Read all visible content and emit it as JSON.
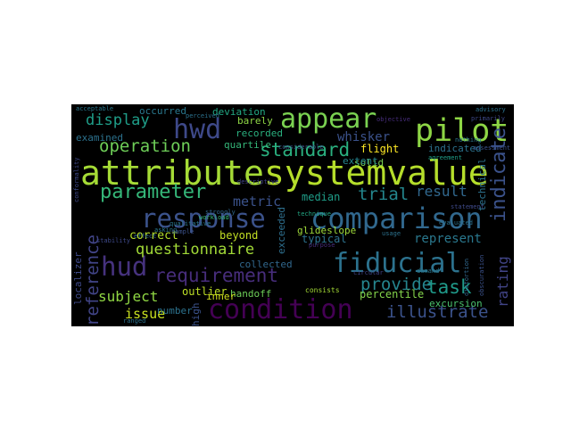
{
  "wordcloud": {
    "background": "#000000",
    "words": [
      {
        "text": "attribute",
        "color": "#a5db36"
      },
      {
        "text": "systemvalue",
        "color": "#b5de2b"
      },
      {
        "text": "appear",
        "color": "#7ad151"
      },
      {
        "text": "pilot",
        "color": "#8ed645"
      },
      {
        "text": "hwd",
        "color": "#3e4989"
      },
      {
        "text": "comparison",
        "color": "#31688e"
      },
      {
        "text": "response",
        "color": "#3b528b"
      },
      {
        "text": "fiducial",
        "color": "#2c728e"
      },
      {
        "text": "condition",
        "color": "#440154"
      },
      {
        "text": "hud",
        "color": "#46327e"
      },
      {
        "text": "requirement",
        "color": "#472d7b"
      },
      {
        "text": "parameter",
        "color": "#35b779"
      },
      {
        "text": "standard",
        "color": "#2ab07f"
      },
      {
        "text": "operation",
        "color": "#6ece58"
      },
      {
        "text": "display",
        "color": "#1f9e89"
      },
      {
        "text": "indicate",
        "color": "#3b528b"
      },
      {
        "text": "reference",
        "color": "#414487"
      },
      {
        "text": "task",
        "color": "#1f9a8a"
      },
      {
        "text": "questionnaire",
        "color": "#a2da37"
      },
      {
        "text": "illustrate",
        "color": "#3b528b"
      },
      {
        "text": "rating",
        "color": "#414487"
      },
      {
        "text": "trial",
        "color": "#24878e"
      },
      {
        "text": "metric",
        "color": "#3b528b"
      },
      {
        "text": "result",
        "color": "#31688e"
      },
      {
        "text": "provide",
        "color": "#25858e"
      },
      {
        "text": "subject",
        "color": "#90d743"
      },
      {
        "text": "issue",
        "color": "#c8e020"
      },
      {
        "text": "represent",
        "color": "#2a788e"
      },
      {
        "text": "correct",
        "color": "#b5de2b"
      },
      {
        "text": "beyond",
        "color": "#c2df23"
      },
      {
        "text": "exceeded",
        "color": "#2e6f8e"
      },
      {
        "text": "occurred",
        "color": "#2a788e"
      },
      {
        "text": "deviation",
        "color": "#22a884"
      },
      {
        "text": "examined",
        "color": "#2c728e"
      },
      {
        "text": "quartile",
        "color": "#35b779"
      },
      {
        "text": "barely",
        "color": "#8ed645"
      },
      {
        "text": "recorded",
        "color": "#2ab07f"
      },
      {
        "text": "whisker",
        "color": "#3b528b"
      },
      {
        "text": "median",
        "color": "#1f9e89"
      },
      {
        "text": "glideslope",
        "color": "#9fda3a"
      },
      {
        "text": "solid",
        "color": "#7ad151"
      },
      {
        "text": "flight",
        "color": "#fde725"
      },
      {
        "text": "extent",
        "color": "#25858e"
      },
      {
        "text": "indicated",
        "color": "#2c728e"
      },
      {
        "text": "technical",
        "color": "#3b528b"
      },
      {
        "text": "outlier",
        "color": "#bddf26"
      },
      {
        "text": "collected",
        "color": "#31688e"
      },
      {
        "text": "typical",
        "color": "#2c728e"
      },
      {
        "text": "localizer",
        "color": "#3e4989"
      },
      {
        "text": "handoff",
        "color": "#6ece58"
      },
      {
        "text": "percentile",
        "color": "#84d44b"
      },
      {
        "text": "excursion",
        "color": "#4ac16d"
      },
      {
        "text": "inner",
        "color": "#d2e21b"
      },
      {
        "text": "number",
        "color": "#2c728e"
      },
      {
        "text": "high",
        "color": "#3b528b"
      },
      {
        "text": "consists",
        "color": "#a5db36"
      },
      {
        "text": "demand",
        "color": "#2a788e"
      },
      {
        "text": "technique",
        "color": "#22a884"
      },
      {
        "text": "purpose",
        "color": "#472d7b"
      },
      {
        "text": "primarily",
        "color": "#3e4989"
      },
      {
        "text": "advisory",
        "color": "#2c728e"
      },
      {
        "text": "assessment",
        "color": "#3b528b"
      },
      {
        "text": "agreement",
        "color": "#1f9e89"
      },
      {
        "text": "workload",
        "color": "#35b779"
      },
      {
        "text": "qualitative",
        "color": "#2a788e"
      },
      {
        "text": "conformality",
        "color": "#3e4989"
      },
      {
        "text": "perceived",
        "color": "#2c728e"
      },
      {
        "text": "descriptive",
        "color": "#414487"
      },
      {
        "text": "strongly",
        "color": "#31688e"
      },
      {
        "text": "considerable",
        "color": "#3b528b"
      },
      {
        "text": "asking",
        "color": "#2a788e"
      },
      {
        "text": "evaluated",
        "color": "#2c728e"
      },
      {
        "text": "circular",
        "color": "#414487"
      },
      {
        "text": "obscuration",
        "color": "#3b528b"
      },
      {
        "text": "distortion",
        "color": "#31688e"
      },
      {
        "text": "nothing",
        "color": "#2a788e"
      },
      {
        "text": "statement",
        "color": "#3e4989"
      },
      {
        "text": "usage",
        "color": "#2c728e"
      },
      {
        "text": "objective",
        "color": "#472d7b"
      },
      {
        "text": "effect",
        "color": "#31688e"
      },
      {
        "text": "sample",
        "color": "#3b528b"
      },
      {
        "text": "ranged",
        "color": "#2c728e"
      },
      {
        "text": "stability",
        "color": "#3e4989"
      },
      {
        "text": "acceptable",
        "color": "#2a788e"
      }
    ]
  }
}
